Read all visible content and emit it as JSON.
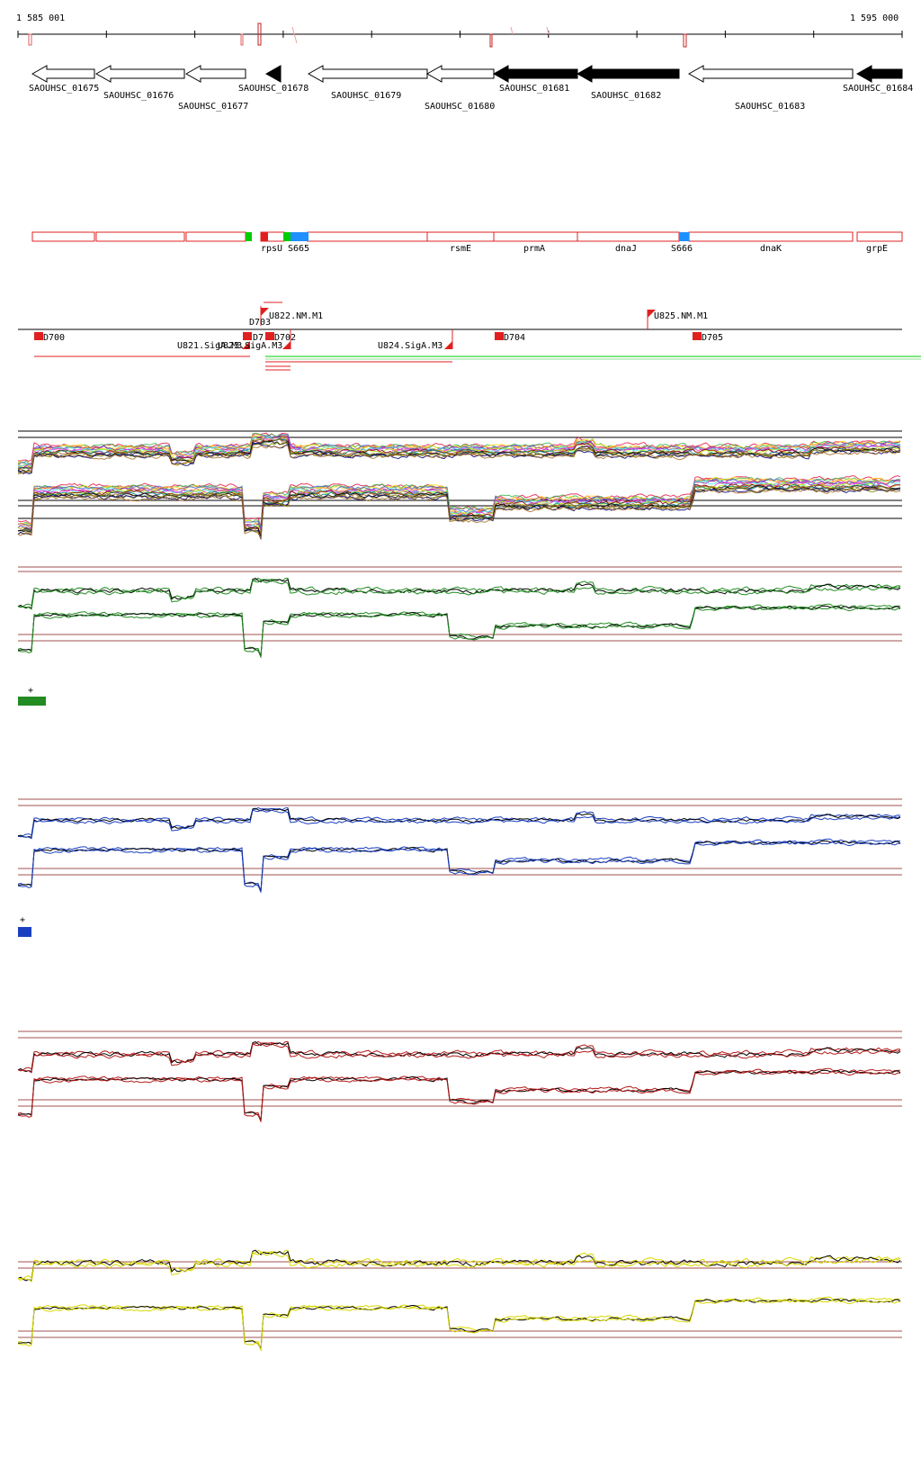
{
  "coords": {
    "start": "1 585 001",
    "end": "1 595 000"
  },
  "genes": [
    {
      "id": "SAOUHSC_01675",
      "strand": "-",
      "filled": false
    },
    {
      "id": "SAOUHSC_01676",
      "strand": "-",
      "filled": false
    },
    {
      "id": "SAOUHSC_01677",
      "strand": "-",
      "filled": false
    },
    {
      "id": "SAOUHSC_01678",
      "strand": "-",
      "filled": true
    },
    {
      "id": "SAOUHSC_01679",
      "strand": "-",
      "filled": false
    },
    {
      "id": "SAOUHSC_01680",
      "strand": "-",
      "filled": false
    },
    {
      "id": "SAOUHSC_01681",
      "strand": "-",
      "filled": true
    },
    {
      "id": "SAOUHSC_01682",
      "strand": "-",
      "filled": true
    },
    {
      "id": "SAOUHSC_01683",
      "strand": "-",
      "filled": false
    },
    {
      "id": "SAOUHSC_01684",
      "strand": "-",
      "filled": true
    }
  ],
  "annotation_labels": [
    "rpsU",
    "S665",
    "rsmE",
    "prmA",
    "dnaJ",
    "S666",
    "dnaK",
    "grpE"
  ],
  "features_upper": [
    "U822.NM.M1",
    "D703",
    "U825.NM.M1"
  ],
  "features_lower": [
    "D700",
    "U821.SigA.M3",
    "U823.SigA.M3",
    "D7",
    "D702",
    "U824.SigA.M3",
    "D704",
    "D705"
  ],
  "track_markers": {
    "green": "+",
    "blue": "+"
  },
  "colors": {
    "gene_filled": "#000000",
    "annotation_box": "#e02020",
    "green_feature": "#00cc00",
    "blue_feature": "#1e90ff",
    "track_green": "#228b22",
    "track_blue": "#1a3fbf",
    "track_red": "#b31b1b",
    "track_yellow": "#d8d800",
    "threshold_line": "#a05050"
  }
}
